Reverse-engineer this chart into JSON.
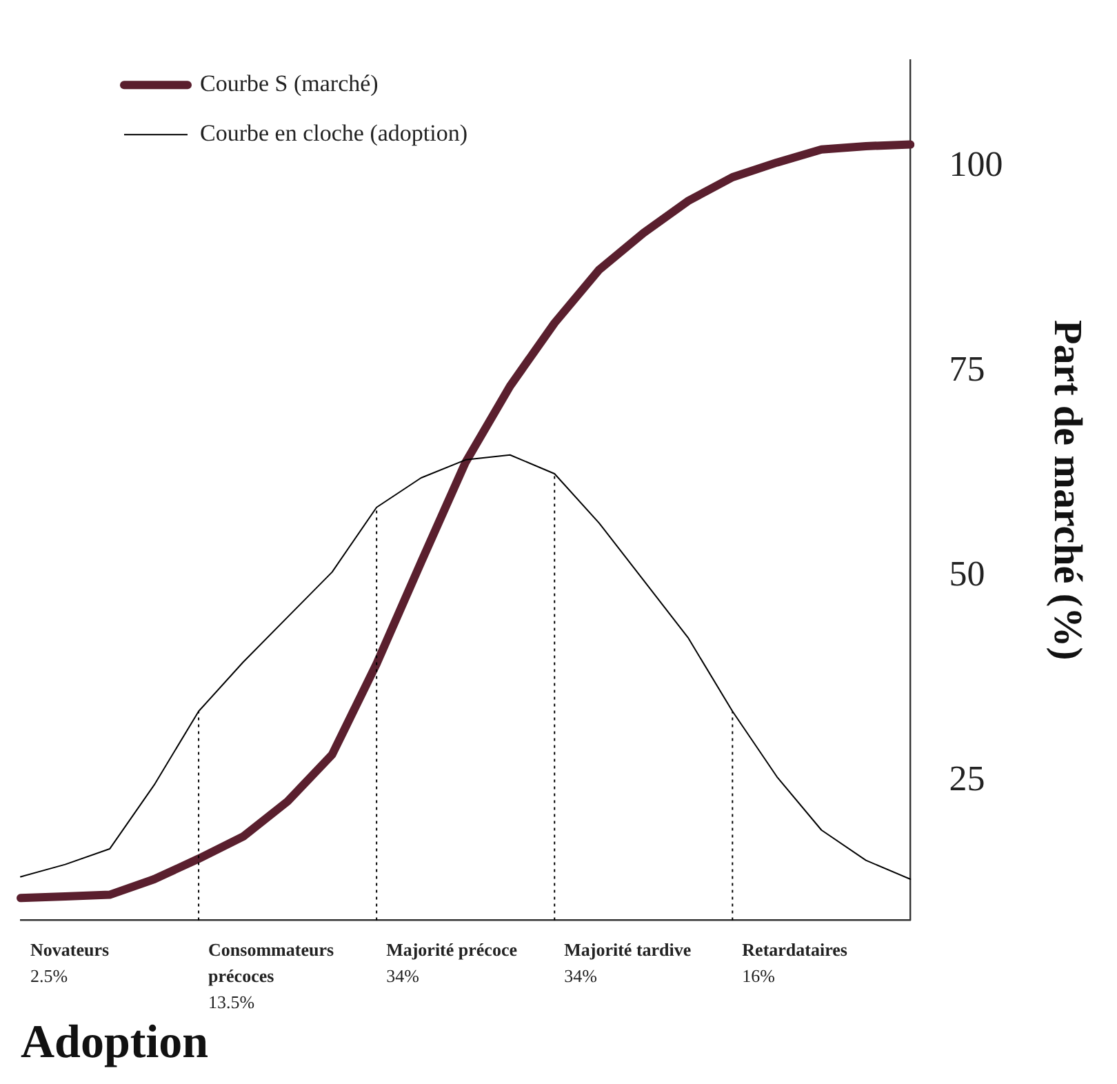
{
  "chart_data": {
    "type": "line",
    "xlabel": "Adoption",
    "ylabel": "Part de marché (%)",
    "categories": [
      null,
      null,
      null,
      null,
      null,
      null,
      null,
      null,
      null,
      null,
      null,
      null,
      null,
      null,
      null,
      null,
      null,
      null,
      null,
      null,
      null
    ],
    "ylim": [
      8,
      113
    ],
    "yticks": [
      25,
      50,
      75,
      100
    ],
    "tick_labels": "y",
    "legend": "top left",
    "series": [
      {
        "name": "Courbe S (marché)",
        "color": "#5a1f2e",
        "values": [
          10.7,
          10.9,
          11.1,
          13.0,
          15.5,
          18.2,
          22.5,
          28.2,
          39.3,
          51.7,
          63.9,
          73.2,
          80.9,
          87.4,
          91.9,
          95.8,
          98.7,
          100.5,
          102.1,
          102.5,
          102.7
        ]
      },
      {
        "name": "Courbe en cloche (adoption)",
        "color": "#000000",
        "values": [
          13.3,
          14.8,
          16.7,
          24.5,
          33.5,
          39.5,
          45.0,
          50.5,
          58.4,
          62.0,
          64.2,
          64.8,
          62.5,
          56.5,
          49.5,
          42.5,
          33.5,
          25.5,
          19.0,
          15.3,
          13.0
        ]
      }
    ],
    "annotations": [
      "Novateurs\n2.5%",
      "Consommateurs\nprécoces\n13.5%",
      "Majorité précoce\n34%",
      "Majorité tardive\n34%",
      "Retardataires\n16%"
    ]
  }
}
